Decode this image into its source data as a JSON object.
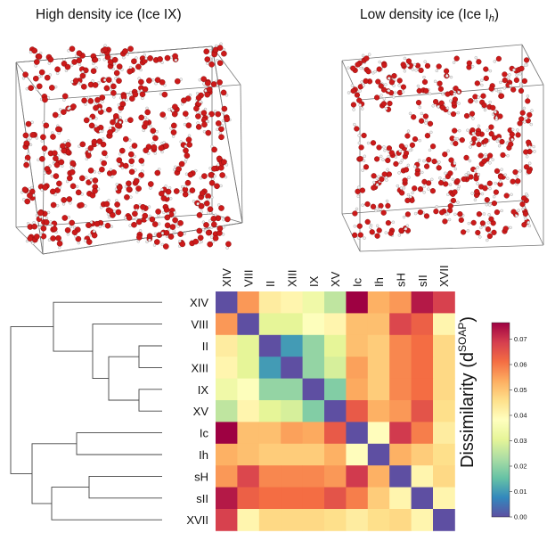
{
  "titles": {
    "left": "High density ice (Ice IX)",
    "right_main": "Low density ice (Ice I",
    "right_sub": "h",
    "right_close": ")"
  },
  "colors": {
    "oxygen": "#cc1a1a",
    "hydrogen": "#f2f2f2",
    "box": "#777777",
    "dendrogram": "#444444"
  },
  "chart_data": {
    "type": "heatmap",
    "title": "",
    "colorbar_label_prefix": "Dissimilarity (d",
    "colorbar_label_sup": "SOAP",
    "colorbar_label_suffix": ")",
    "colorbar_range": [
      0.0,
      0.075
    ],
    "colorbar_ticks": [
      "0.00",
      "0.01",
      "0.02",
      "0.03",
      "0.04",
      "0.05",
      "0.06",
      "0.07"
    ],
    "colormap": "Spectral_r",
    "columns": [
      "XIV",
      "VIII",
      "II",
      "XIII",
      "IX",
      "XV",
      "Ic",
      "Ih",
      "sH",
      "sII",
      "XVII"
    ],
    "rows": [
      "XIV",
      "VIII",
      "II",
      "XIII",
      "IX",
      "XV",
      "Ic",
      "Ih",
      "sH",
      "sII",
      "XVII"
    ],
    "values": [
      [
        0.0,
        0.055,
        0.042,
        0.04,
        0.033,
        0.025,
        0.075,
        0.052,
        0.055,
        0.072,
        0.067
      ],
      [
        0.055,
        0.0,
        0.03,
        0.03,
        0.037,
        0.04,
        0.05,
        0.05,
        0.066,
        0.062,
        0.04
      ],
      [
        0.042,
        0.03,
        0.0,
        0.01,
        0.02,
        0.03,
        0.05,
        0.048,
        0.057,
        0.06,
        0.046
      ],
      [
        0.04,
        0.03,
        0.01,
        0.0,
        0.02,
        0.028,
        0.054,
        0.048,
        0.057,
        0.06,
        0.046
      ],
      [
        0.033,
        0.037,
        0.02,
        0.02,
        0.0,
        0.018,
        0.053,
        0.048,
        0.057,
        0.06,
        0.046
      ],
      [
        0.025,
        0.04,
        0.03,
        0.028,
        0.018,
        0.0,
        0.063,
        0.052,
        0.055,
        0.064,
        0.045
      ],
      [
        0.075,
        0.05,
        0.05,
        0.054,
        0.053,
        0.063,
        0.0,
        0.038,
        0.068,
        0.058,
        0.042
      ],
      [
        0.052,
        0.05,
        0.048,
        0.048,
        0.048,
        0.052,
        0.038,
        0.0,
        0.052,
        0.048,
        0.045
      ],
      [
        0.055,
        0.066,
        0.057,
        0.057,
        0.057,
        0.055,
        0.068,
        0.052,
        0.0,
        0.04,
        0.046
      ],
      [
        0.072,
        0.062,
        0.06,
        0.06,
        0.06,
        0.064,
        0.058,
        0.048,
        0.04,
        0.0,
        0.04
      ],
      [
        0.067,
        0.04,
        0.046,
        0.046,
        0.046,
        0.045,
        0.042,
        0.045,
        0.046,
        0.04,
        0.0
      ]
    ]
  }
}
